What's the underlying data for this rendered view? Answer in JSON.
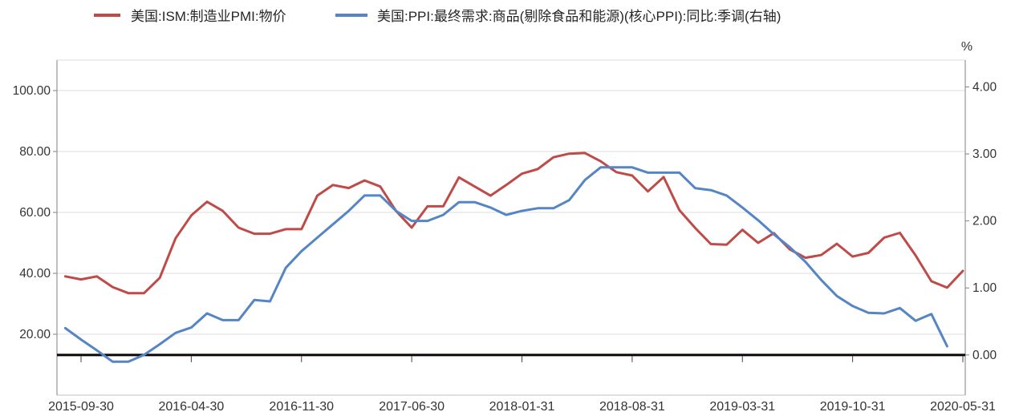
{
  "legend": {
    "series1_label": "美国:ISM:制造业PMI:物价",
    "series2_label": "美国:PPI:最终需求:商品(剔除食品和能源)(核心PPI):同比:季调(右轴)"
  },
  "colors": {
    "series1": "#BE4B48",
    "series2": "#5585C4",
    "gridline": "#DCDCDC",
    "axis_line": "#808080",
    "zero_line": "#0D0404",
    "bottom_border": "#BFBFBF",
    "label_text": "#333333"
  },
  "chart_data": {
    "type": "line",
    "title": "",
    "x_axis": {
      "start": "2015-08",
      "interval": "monthly",
      "tick_labels": [
        "2015-09-30",
        "2016-04-30",
        "2016-11-30",
        "2017-06-30",
        "2018-01-31",
        "2018-08-31",
        "2019-03-31",
        "2019-10-31",
        "2020-05-31"
      ]
    },
    "left_axis": {
      "min": 0,
      "max": 110,
      "tick_values": [
        20,
        40,
        60,
        80,
        100
      ],
      "tick_labels": [
        "20.00",
        "40.00",
        "60.00",
        "80.00",
        "100.00"
      ]
    },
    "right_axis": {
      "min": -0.6,
      "max": 4.4,
      "tick_values": [
        0,
        1,
        2,
        3,
        4
      ],
      "tick_labels": [
        "0.00",
        "1.00",
        "2.00",
        "3.00",
        "4.00"
      ],
      "unit": "%"
    },
    "grid": "horizontal-only",
    "legend_position": "top",
    "series": [
      {
        "name": "美国:ISM:制造业PMI:物价",
        "axis": "left",
        "color": "#BE4B48",
        "first_month": "2015-08",
        "last_month": "2020-05",
        "values": [
          39.0,
          38.0,
          39.0,
          35.5,
          33.5,
          33.5,
          38.5,
          51.5,
          59.0,
          63.5,
          60.5,
          55.0,
          53.0,
          53.0,
          54.5,
          54.5,
          65.5,
          69.0,
          68.0,
          70.5,
          68.5,
          60.5,
          55.0,
          62.0,
          62.0,
          71.5,
          68.5,
          65.5,
          69.0,
          72.7,
          74.2,
          78.1,
          79.3,
          79.5,
          76.8,
          73.2,
          72.1,
          66.9,
          71.6,
          60.7,
          54.9,
          49.6,
          49.4,
          54.3,
          50.0,
          53.2,
          47.9,
          45.1,
          46.0,
          49.7,
          45.5,
          46.7,
          51.7,
          53.3,
          45.9,
          37.4,
          35.3,
          40.8
        ]
      },
      {
        "name": "美国:PPI:最终需求:商品(剔除食品和能源)(核心PPI):同比:季调(右轴)",
        "axis": "right",
        "color": "#5585C4",
        "first_month": "2015-08",
        "last_month": "2020-04",
        "values": [
          0.4,
          0.23,
          0.07,
          -0.1,
          -0.1,
          0.0,
          0.16,
          0.33,
          0.41,
          0.62,
          0.52,
          0.52,
          0.82,
          0.8,
          1.3,
          1.55,
          1.75,
          1.95,
          2.15,
          2.38,
          2.38,
          2.15,
          2.0,
          2.0,
          2.09,
          2.28,
          2.28,
          2.2,
          2.09,
          2.15,
          2.19,
          2.19,
          2.31,
          2.61,
          2.8,
          2.8,
          2.8,
          2.72,
          2.72,
          2.72,
          2.49,
          2.46,
          2.38,
          2.2,
          2.01,
          1.8,
          1.61,
          1.39,
          1.12,
          0.88,
          0.73,
          0.63,
          0.62,
          0.7,
          0.51,
          0.61,
          0.13
        ]
      }
    ]
  }
}
